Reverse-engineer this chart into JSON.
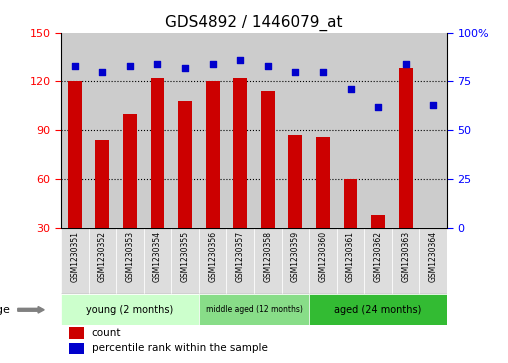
{
  "title": "GDS4892 / 1446079_at",
  "samples": [
    "GSM1230351",
    "GSM1230352",
    "GSM1230353",
    "GSM1230354",
    "GSM1230355",
    "GSM1230356",
    "GSM1230357",
    "GSM1230358",
    "GSM1230359",
    "GSM1230360",
    "GSM1230361",
    "GSM1230362",
    "GSM1230363",
    "GSM1230364"
  ],
  "counts": [
    120,
    84,
    100,
    122,
    108,
    120,
    122,
    114,
    87,
    86,
    60,
    38,
    128,
    30
  ],
  "percentiles": [
    83,
    80,
    83,
    84,
    82,
    84,
    86,
    83,
    80,
    80,
    71,
    62,
    84,
    63
  ],
  "ylim_left": [
    30,
    150
  ],
  "ylim_right": [
    0,
    100
  ],
  "yticks_left": [
    30,
    60,
    90,
    120,
    150
  ],
  "yticks_right": [
    0,
    25,
    50,
    75,
    100
  ],
  "ytick_labels_right": [
    "0",
    "25",
    "50",
    "75",
    "100%"
  ],
  "bar_color": "#cc0000",
  "dot_color": "#0000cc",
  "bar_bottom": 30,
  "groups": [
    {
      "label": "young (2 months)",
      "start": 0,
      "end": 5,
      "color": "#ccffcc"
    },
    {
      "label": "middle aged (12 months)",
      "start": 5,
      "end": 9,
      "color": "#88dd88"
    },
    {
      "label": "aged (24 months)",
      "start": 9,
      "end": 14,
      "color": "#33bb33"
    }
  ],
  "age_label": "age",
  "legend_count_label": "count",
  "legend_percentile_label": "percentile rank within the sample",
  "background_color": "#ffffff",
  "panel_bg": "#cccccc",
  "sample_band_bg": "#dddddd",
  "title_fontsize": 11,
  "grid_yticks": [
    60,
    90,
    120
  ]
}
